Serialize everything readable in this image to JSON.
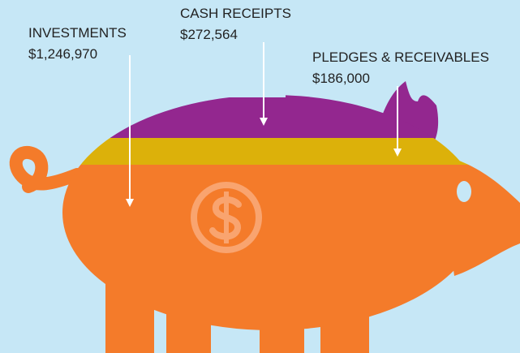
{
  "items": [
    {
      "label": "INVESTMENTS",
      "amount": "$1,246,970"
    },
    {
      "label": "CASH RECEIPTS",
      "amount": "$272,564"
    },
    {
      "label": "PLEDGES & RECEIVABLES",
      "amount": "$186,000"
    }
  ]
}
